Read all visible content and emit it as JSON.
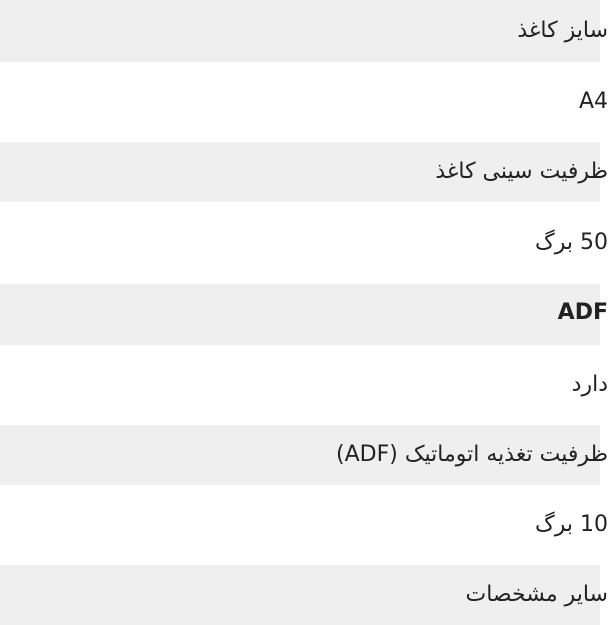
{
  "specs": [
    {
      "label": "سایز کاغذ",
      "value": "A4"
    },
    {
      "label": "ظرفیت سینی کاغذ",
      "value": "50 برگ"
    },
    {
      "label": "ADF",
      "value": "دارد"
    },
    {
      "label": "ظرفیت تغذیه اتوماتیک (ADF)",
      "value": "10 برگ"
    },
    {
      "label": "سایر مشخصات"
    }
  ]
}
